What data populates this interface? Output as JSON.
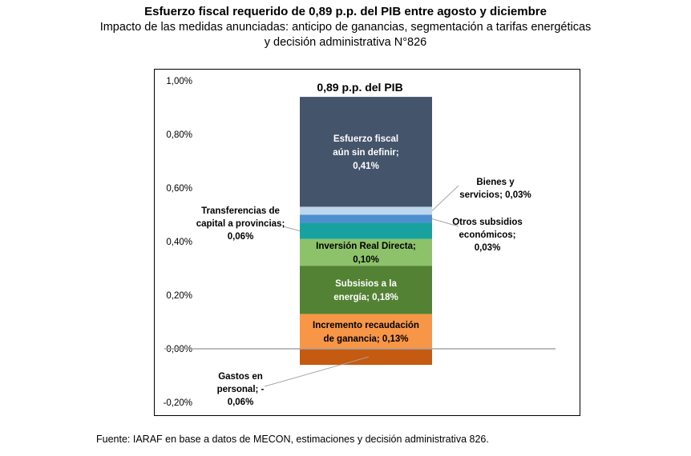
{
  "title": "Esfuerzo fiscal requerido de 0,89 p.p. del PIB entre agosto y diciembre",
  "subtitle": "Impacto de las medidas anunciadas: anticipo de ganancias, segmentación a tarifas energéticas y decisión administrativa N°826",
  "source": "Fuente: IARAF en base a datos de MECON, estimaciones y decisión administrativa 826.",
  "chart_data": {
    "type": "bar",
    "stacked": true,
    "total_label": "0,89 p.p. del PIB",
    "ylim": [
      -0.2,
      1.0
    ],
    "yticks": [
      {
        "value": 1.0,
        "label": "1,00%"
      },
      {
        "value": 0.8,
        "label": "0,80%"
      },
      {
        "value": 0.6,
        "label": "0,60%"
      },
      {
        "value": 0.4,
        "label": "0,40%"
      },
      {
        "value": 0.2,
        "label": "0,20%"
      },
      {
        "value": 0.0,
        "label": "0,00%"
      },
      {
        "value": -0.2,
        "label": "-0,20%"
      }
    ],
    "grid": false,
    "segments": [
      {
        "name": "Gastos en personal",
        "value": -0.06,
        "color": "#c55a11",
        "label_lines": [
          "Gastos en",
          "personal; -",
          "0,06%"
        ]
      },
      {
        "name": "Incremento recaudación de ganancia",
        "value": 0.13,
        "color": "#f79646",
        "label_lines": [
          "Incremento recaudación",
          "de ganancia; 0,13%"
        ]
      },
      {
        "name": "Subsisios a la energía",
        "value": 0.18,
        "color": "#538234",
        "label_lines": [
          "Subsisios a la",
          "energía; 0,18%"
        ]
      },
      {
        "name": "Inversión Real Directa",
        "value": 0.1,
        "color": "#8dc26b",
        "label_lines": [
          "Inversión Real Directa;",
          "0,10%"
        ]
      },
      {
        "name": "Transferencias de capital a provincias",
        "value": 0.06,
        "color": "#17a2a0",
        "label_lines": [
          "Transferencias de",
          "capital a provincias;",
          "0,06%"
        ]
      },
      {
        "name": "Otros subsidios económicos",
        "value": 0.03,
        "color": "#4e8fd0",
        "label_lines": [
          "Otros subsidios",
          "económicos;",
          "0,03%"
        ]
      },
      {
        "name": "Bienes y servicios",
        "value": 0.03,
        "color": "#bdd7ee",
        "label_lines": [
          "Bienes y",
          "servicios; 0,03%"
        ]
      },
      {
        "name": "Esfuerzo fiscal aún sin definir",
        "value": 0.41,
        "color": "#44546a",
        "label_lines": [
          "Esfuerzo fiscal",
          "aún sin definir;",
          "0,41%"
        ]
      }
    ]
  }
}
